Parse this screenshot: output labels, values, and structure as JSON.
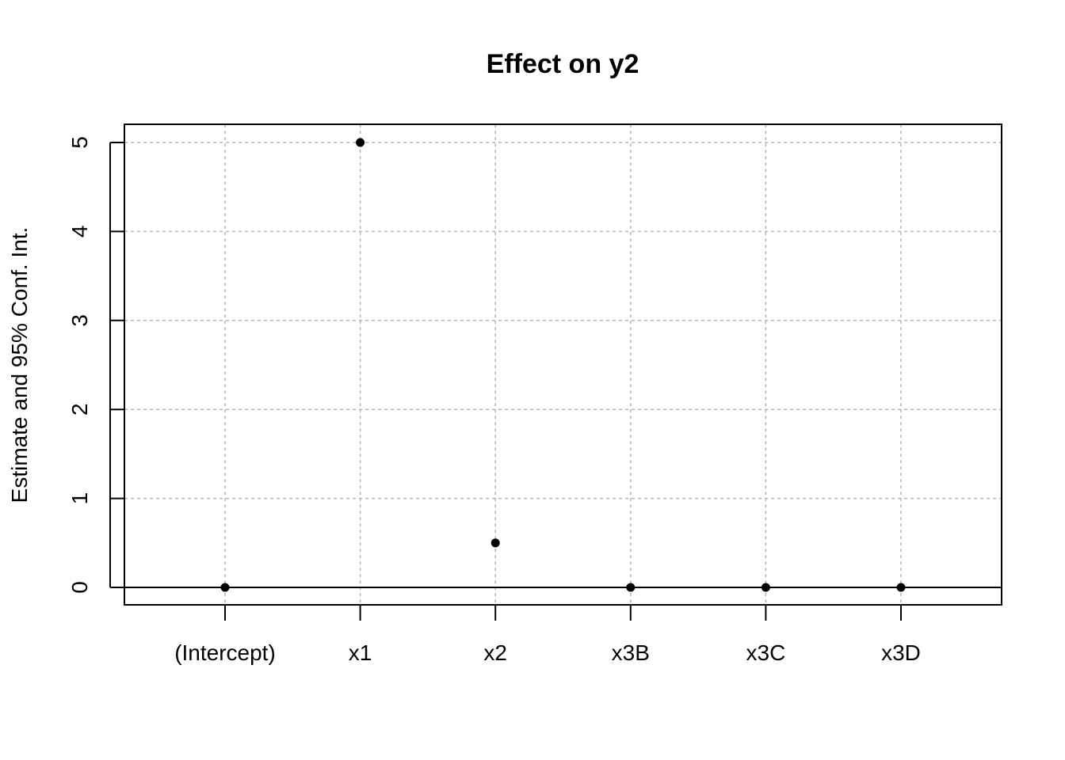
{
  "chart_data": {
    "type": "scatter",
    "title": "Effect on y2",
    "xlabel": "",
    "ylabel": "Estimate and 95% Conf. Int.",
    "categories": [
      "(Intercept)",
      "x1",
      "x2",
      "x3B",
      "x3C",
      "x3D"
    ],
    "values": [
      0,
      5,
      0.5,
      0,
      0,
      0
    ],
    "yticks": [
      0,
      1,
      2,
      3,
      4,
      5
    ],
    "ylim": [
      -0.2,
      5.2
    ],
    "reference_line": 0,
    "grid": true,
    "colors": {
      "point": "#000000",
      "grid": "#b3b3b3",
      "axis": "#000000"
    }
  }
}
